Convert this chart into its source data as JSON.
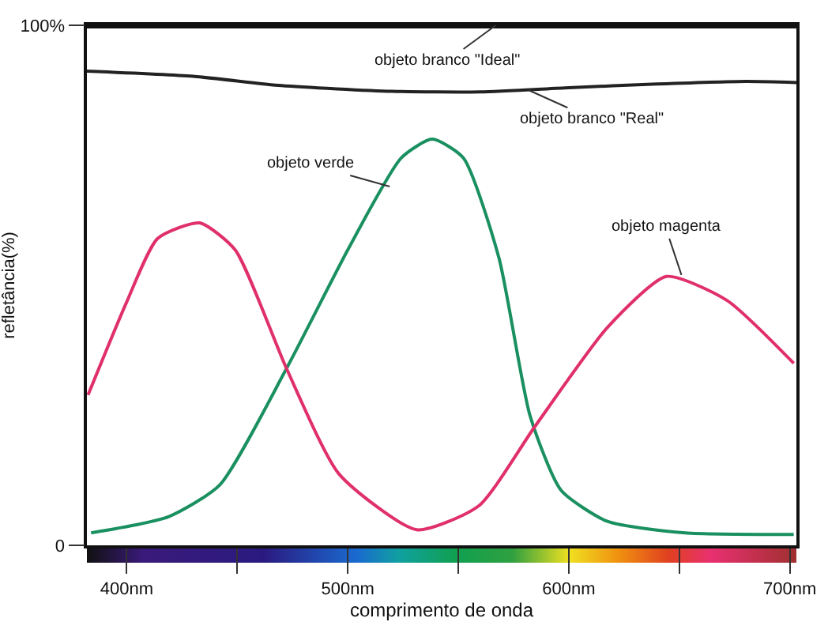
{
  "chart_data": {
    "type": "line",
    "xlabel": "comprimento de onda",
    "ylabel": "refletância(%)",
    "xlim": [
      382,
      703
    ],
    "ylim": [
      0,
      100
    ],
    "xticks": [
      {
        "value": 400,
        "label": "400nm"
      },
      {
        "value": 450,
        "label": null
      },
      {
        "value": 500,
        "label": "500nm"
      },
      {
        "value": 550,
        "label": null
      },
      {
        "value": 600,
        "label": "600nm"
      },
      {
        "value": 650,
        "label": null
      },
      {
        "value": 700,
        "label": "700nm"
      }
    ],
    "yticks": [
      0,
      {
        "value": 100,
        "label": "100%"
      }
    ],
    "grid": false,
    "marker": "none",
    "line_style": "solid",
    "series": [
      {
        "color": "#111111",
        "x": [
          382,
          703
        ],
        "values": [
          100,
          100
        ]
      },
      {
        "color": "#222222",
        "x": [
          382,
          430,
          470,
          520,
          560,
          600,
          640,
          680,
          703
        ],
        "values": [
          91.2,
          90.2,
          88.4,
          87.3,
          87.2,
          88,
          88.7,
          89.2,
          89
        ]
      },
      {
        "color": "#1a9060",
        "x": [
          383.9,
          418.9,
          442.1,
          472.3,
          500.4,
          524.2,
          538.2,
          552.3,
          568.4,
          582.5,
          596.5,
          617.5,
          652.6,
          701.8
        ],
        "values": [
          2.4,
          5.5,
          11.6,
          34,
          57.1,
          74.5,
          78.1,
          74.5,
          55.3,
          24.9,
          10.6,
          4.6,
          2.4,
          2.1
        ]
      },
      {
        "color": "#e0306a",
        "x": [
          382.5,
          400,
          414,
          433,
          449.1,
          472.3,
          496.1,
          531.2,
          559.3,
          584.6,
          617.5,
          644.2,
          671.6,
          701.8
        ],
        "values": [
          28.9,
          46.8,
          59,
          62,
          56.8,
          34,
          13.7,
          3,
          7.6,
          22.8,
          41.9,
          51.7,
          47.1,
          35
        ]
      }
    ],
    "annotations": [
      {
        "text": "objeto branco \"Ideal\"",
        "x": 567,
        "y": 100
      },
      {
        "text": "objeto branco \"Real\"",
        "x": 582,
        "y": 87.5
      },
      {
        "text": "objeto verde",
        "x": 519,
        "y": 69
      },
      {
        "text": "objeto magenta",
        "x": 651,
        "y": 52
      }
    ]
  }
}
